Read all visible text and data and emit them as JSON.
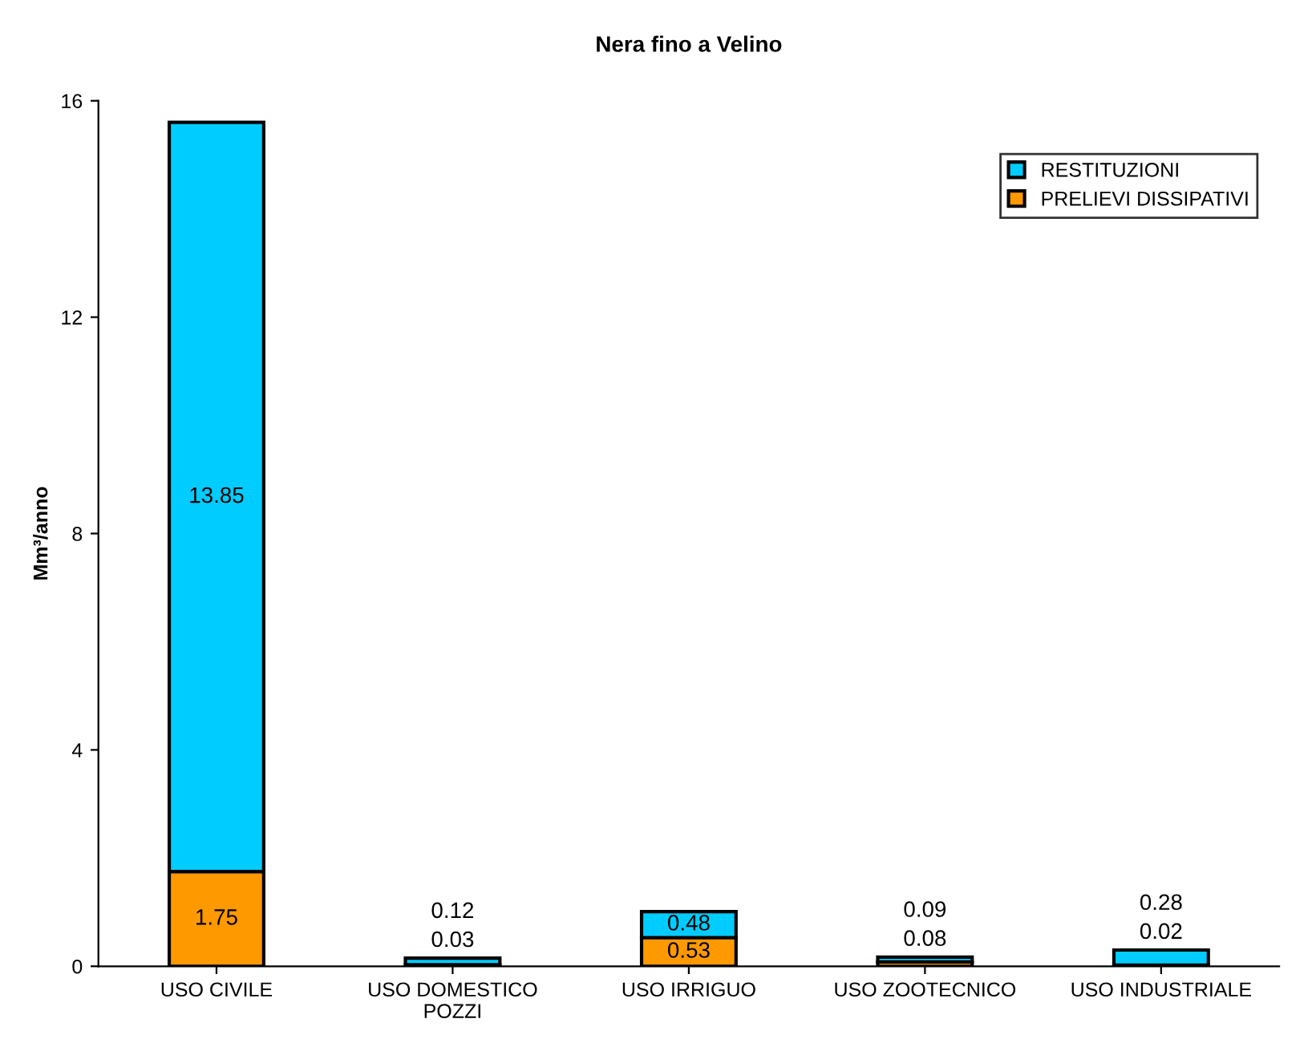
{
  "chart_data": {
    "type": "bar",
    "title": "Nera fino a Velino",
    "ylabel": "Mm³/anno",
    "categories": [
      "USO CIVILE",
      "USO DOMESTICO\nPOZZI",
      "USO IRRIGUO",
      "USO ZOOTECNICO",
      "USO INDUSTRIALE"
    ],
    "stacked": true,
    "data_labels": true,
    "legend": "top right",
    "grid": false,
    "ylim": [
      0,
      16
    ],
    "yticks": [
      0,
      4,
      8,
      12,
      16
    ],
    "series": [
      {
        "name": "PRELIEVI DISSIPATIVI",
        "color": "#ff9900",
        "values": [
          1.75,
          0.03,
          0.53,
          0.08,
          0.02
        ]
      },
      {
        "name": "RESTITUZIONI",
        "color": "#00ccff",
        "values": [
          13.85,
          0.12,
          0.48,
          0.09,
          0.28
        ]
      }
    ]
  }
}
